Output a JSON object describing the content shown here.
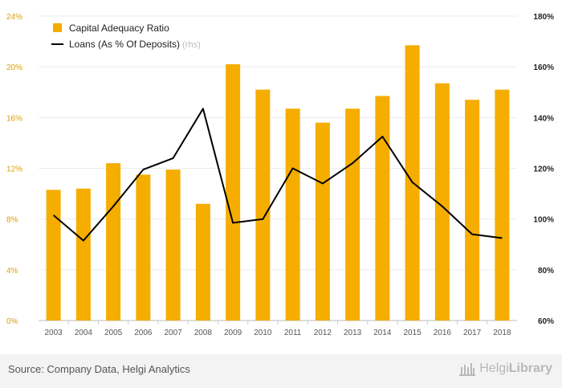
{
  "chart_data": {
    "type": "bar",
    "categories": [
      "2003",
      "2004",
      "2005",
      "2006",
      "2007",
      "2008",
      "2009",
      "2010",
      "2011",
      "2012",
      "2013",
      "2014",
      "2015",
      "2016",
      "2017",
      "2018"
    ],
    "series": [
      {
        "name": "Capital Adequacy Ratio",
        "type": "bar",
        "axis": "left",
        "color": "#f5ad00",
        "values": [
          10.3,
          10.4,
          12.4,
          11.5,
          11.9,
          9.2,
          20.2,
          18.2,
          16.7,
          15.6,
          16.7,
          17.7,
          21.7,
          18.7,
          17.4,
          18.2
        ]
      },
      {
        "name": "Loans (As % Of Deposits)",
        "type": "line",
        "axis": "right",
        "color": "#000000",
        "values": [
          101.5,
          91.5,
          105,
          119.5,
          124,
          143.5,
          98.5,
          100,
          120,
          114,
          122,
          132.5,
          114.5,
          105,
          94,
          92.5
        ]
      }
    ],
    "left_axis": {
      "ylim": [
        0,
        24
      ],
      "ticks": [
        "0%",
        "4%",
        "8%",
        "12%",
        "16%",
        "20%",
        "24%"
      ]
    },
    "right_axis": {
      "ylim": [
        60,
        180
      ],
      "ticks": [
        "60%",
        "80%",
        "100%",
        "120%",
        "140%",
        "160%",
        "180%"
      ]
    },
    "legend": {
      "placement": "top-left",
      "items": [
        "Capital Adequacy Ratio",
        "Loans (As % Of Deposits)"
      ],
      "rhs_note": "(rhs)"
    },
    "grid": true
  },
  "footer": {
    "source": "Source: Company Data, Helgi Analytics",
    "brand_light": "Helgi",
    "brand_bold": "Library"
  }
}
